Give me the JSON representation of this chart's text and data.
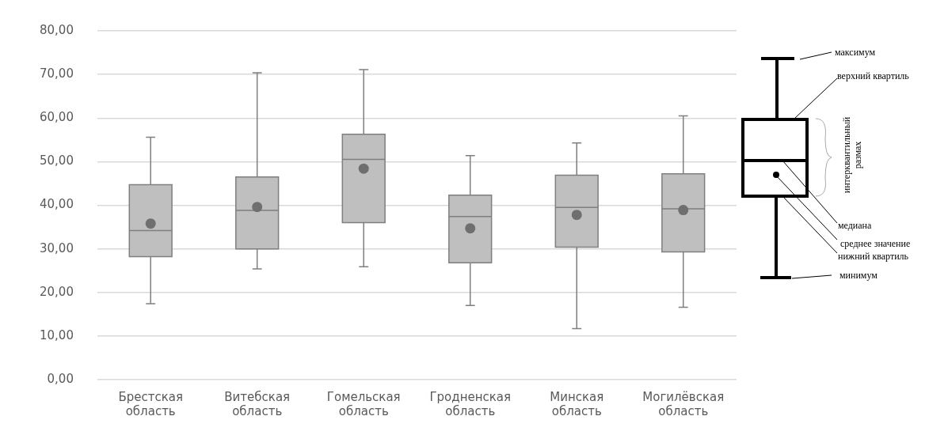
{
  "chart_data": {
    "type": "box",
    "categories": [
      "Брестская область",
      "Витебская область",
      "Гомельская область",
      "Гродненская область",
      "Минская область",
      "Могилёвская область"
    ],
    "color": "#bfbfbf",
    "boxes": [
      {
        "low": 17.4,
        "q1": 28.2,
        "median": 34.2,
        "q3": 44.7,
        "high": 55.6,
        "mean": 35.8
      },
      {
        "low": 25.4,
        "q1": 30.0,
        "median": 38.8,
        "q3": 46.5,
        "high": 70.4,
        "mean": 39.6
      },
      {
        "low": 25.9,
        "q1": 36.0,
        "median": 50.5,
        "q3": 56.3,
        "high": 71.1,
        "mean": 48.4
      },
      {
        "low": 17.0,
        "q1": 26.8,
        "median": 37.4,
        "q3": 42.3,
        "high": 51.4,
        "mean": 34.7
      },
      {
        "low": 11.7,
        "q1": 30.4,
        "median": 39.5,
        "q3": 46.9,
        "high": 54.3,
        "mean": 37.8
      },
      {
        "low": 16.6,
        "q1": 29.3,
        "median": 39.2,
        "q3": 47.2,
        "high": 60.5,
        "mean": 38.9
      }
    ],
    "ylim": [
      0,
      80
    ],
    "yticks": [
      {
        "value": 0,
        "label": "0,00"
      },
      {
        "value": 10,
        "label": "10,00"
      },
      {
        "value": 20,
        "label": "20,00"
      },
      {
        "value": 30,
        "label": "30,00"
      },
      {
        "value": 40,
        "label": "40,00"
      },
      {
        "value": 50,
        "label": "50,00"
      },
      {
        "value": 60,
        "label": "60,00"
      },
      {
        "value": 70,
        "label": "70,00"
      },
      {
        "value": 80,
        "label": "80,00"
      }
    ],
    "grid": "y",
    "annotations": [
      "максимум",
      "верхний квартиль",
      "интерквантильный размах",
      "медиана",
      "среднее значение",
      "нижний квартиль",
      "минимум"
    ]
  }
}
